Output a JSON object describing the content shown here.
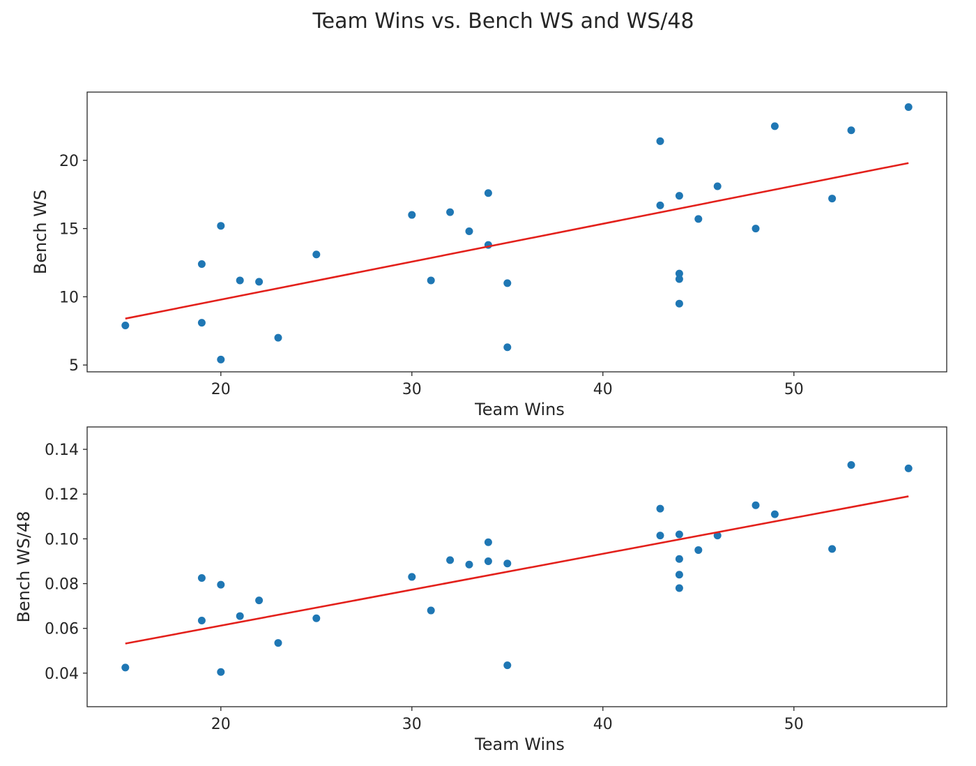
{
  "chart_data": {
    "title": "Team Wins vs. Bench WS and WS/48",
    "subplots": [
      {
        "type": "scatter",
        "xlabel": "Team Wins",
        "ylabel": "Bench WS",
        "xlim": [
          13,
          58
        ],
        "ylim": [
          4.5,
          25
        ],
        "xticks": [
          20,
          30,
          40,
          50
        ],
        "yticks": [
          5,
          10,
          15,
          20
        ],
        "ytick_labels": [
          "5",
          "10",
          "15",
          "20"
        ],
        "points": [
          [
            15,
            7.9
          ],
          [
            19,
            12.4
          ],
          [
            19,
            8.1
          ],
          [
            20,
            15.2
          ],
          [
            20,
            5.4
          ],
          [
            21,
            11.2
          ],
          [
            22,
            11.1
          ],
          [
            23,
            7.0
          ],
          [
            25,
            13.1
          ],
          [
            30,
            16.0
          ],
          [
            31,
            11.2
          ],
          [
            32,
            16.2
          ],
          [
            33,
            14.8
          ],
          [
            34,
            17.6
          ],
          [
            34,
            13.8
          ],
          [
            35,
            11.0
          ],
          [
            35,
            6.3
          ],
          [
            43,
            21.4
          ],
          [
            43,
            16.7
          ],
          [
            44,
            17.4
          ],
          [
            44,
            11.7
          ],
          [
            44,
            11.3
          ],
          [
            44,
            9.5
          ],
          [
            45,
            15.7
          ],
          [
            46,
            18.1
          ],
          [
            48,
            15.0
          ],
          [
            49,
            22.5
          ],
          [
            52,
            17.2
          ],
          [
            53,
            22.2
          ],
          [
            56,
            23.9
          ]
        ],
        "fit_line": [
          [
            15,
            8.4
          ],
          [
            56,
            19.8
          ]
        ],
        "grid": false,
        "colors": {
          "points": "#1f77b4",
          "fit": "#e3201b"
        }
      },
      {
        "type": "scatter",
        "xlabel": "Team Wins",
        "ylabel": "Bench WS/48",
        "xlim": [
          13,
          58
        ],
        "ylim": [
          0.025,
          0.15
        ],
        "xticks": [
          20,
          30,
          40,
          50
        ],
        "yticks": [
          0.04,
          0.06,
          0.08,
          0.1,
          0.12,
          0.14
        ],
        "ytick_labels": [
          "0.04",
          "0.06",
          "0.08",
          "0.10",
          "0.12",
          "0.14"
        ],
        "points": [
          [
            15,
            0.0425
          ],
          [
            19,
            0.0825
          ],
          [
            19,
            0.0635
          ],
          [
            20,
            0.0795
          ],
          [
            20,
            0.0405
          ],
          [
            21,
            0.0655
          ],
          [
            22,
            0.0725
          ],
          [
            23,
            0.0535
          ],
          [
            25,
            0.0645
          ],
          [
            30,
            0.083
          ],
          [
            31,
            0.068
          ],
          [
            32,
            0.0905
          ],
          [
            33,
            0.0885
          ],
          [
            34,
            0.0985
          ],
          [
            34,
            0.09
          ],
          [
            35,
            0.089
          ],
          [
            35,
            0.0435
          ],
          [
            43,
            0.1135
          ],
          [
            43,
            0.1015
          ],
          [
            44,
            0.102
          ],
          [
            44,
            0.091
          ],
          [
            44,
            0.084
          ],
          [
            44,
            0.078
          ],
          [
            45,
            0.095
          ],
          [
            46,
            0.1015
          ],
          [
            48,
            0.115
          ],
          [
            49,
            0.111
          ],
          [
            52,
            0.0955
          ],
          [
            53,
            0.133
          ],
          [
            56,
            0.1315
          ]
        ],
        "fit_line": [
          [
            15,
            0.0532
          ],
          [
            56,
            0.119
          ]
        ],
        "grid": false,
        "colors": {
          "points": "#1f77b4",
          "fit": "#e3201b"
        }
      }
    ]
  }
}
